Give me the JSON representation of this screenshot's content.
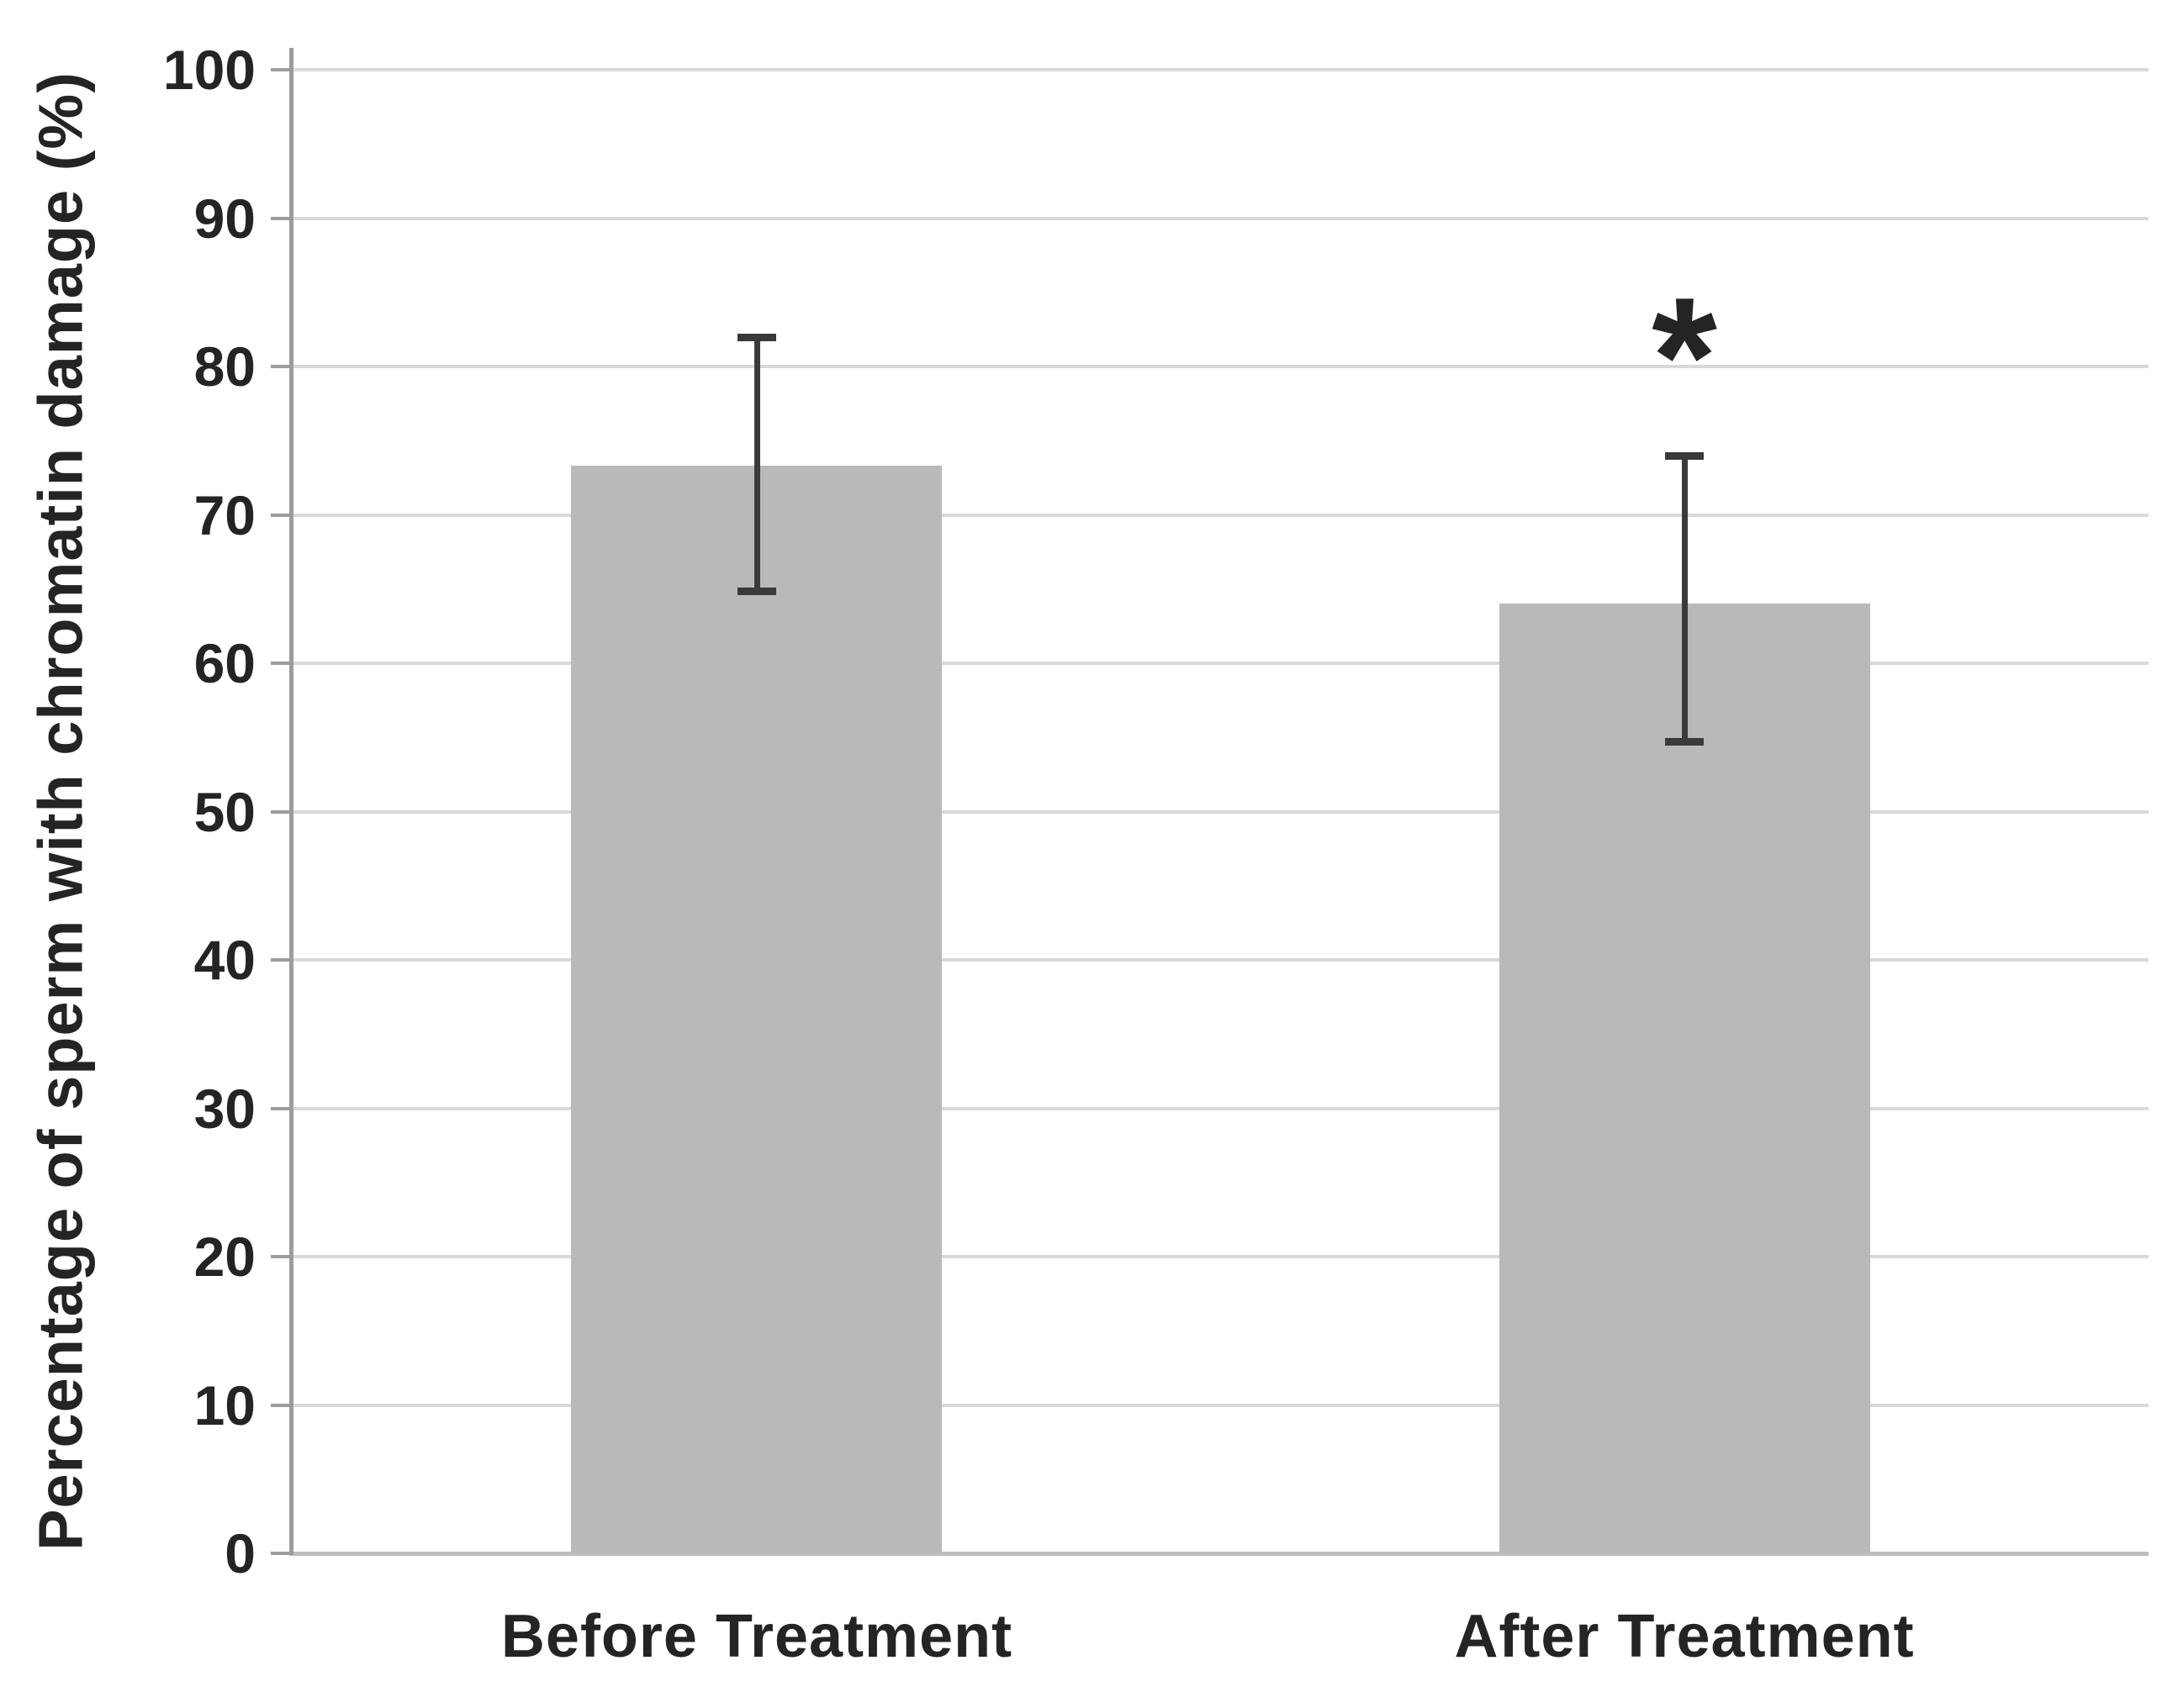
{
  "figure": {
    "background": "#ffffff"
  },
  "chart_data": {
    "type": "bar",
    "title": "",
    "xlabel": "",
    "ylabel": "Percentage of sperm with chromatin damage (%)",
    "categories": [
      "Before Treatment",
      "After Treatment"
    ],
    "values": [
      73.3,
      64.0
    ],
    "error_bars": {
      "upper": [
        82.0,
        74.0
      ],
      "lower": [
        64.8,
        54.7
      ]
    },
    "annotations": [
      {
        "text": "*",
        "category_index": 1,
        "y": 82
      }
    ],
    "ylim": [
      0,
      100
    ],
    "yticks": [
      100,
      90,
      80,
      70,
      60,
      50,
      40,
      30,
      20,
      10,
      0
    ],
    "grid": "horizontal",
    "legend": "none",
    "colors": {
      "bar": "#b9b9b9",
      "gridline": "#d9d9d9",
      "x_axis": "#bdbdbd",
      "y_axis": "#9c9c9c",
      "error_bar": "#3a3a3a",
      "text": "#242424"
    }
  }
}
